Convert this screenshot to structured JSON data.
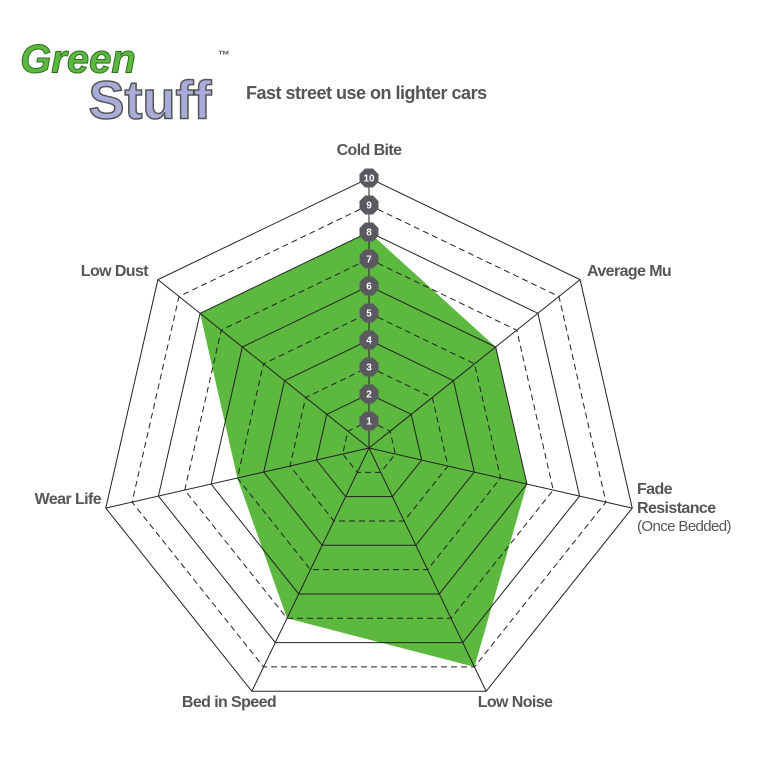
{
  "logo": {
    "line1": "Green",
    "line2": "Stuff",
    "mark": "™"
  },
  "chart_data": {
    "type": "radar",
    "title": "Fast street use on lighter cars",
    "categories": [
      "Cold Bite",
      "Average Mu",
      "Fade Resistance",
      "Low Noise",
      "Bed in Speed",
      "Wear Life",
      "Low Dust"
    ],
    "category_note": "(Once Bedded)",
    "values": [
      8,
      6,
      6,
      9,
      7,
      5,
      8
    ],
    "color": "#5cb83f",
    "rlim": [
      0,
      10
    ],
    "rticks": [
      1,
      2,
      3,
      4,
      5,
      6,
      7,
      8,
      9,
      10
    ]
  }
}
